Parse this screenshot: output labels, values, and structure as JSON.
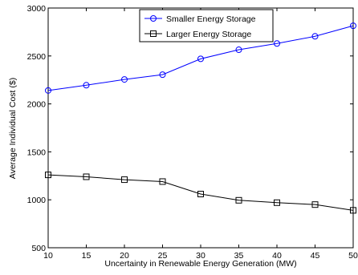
{
  "chart_data": {
    "type": "line",
    "xlabel": "Uncertainty in Renewable Energy Generation (MW)",
    "ylabel": "Average Individual Cost ($)",
    "xlim": [
      10,
      50
    ],
    "ylim": [
      500,
      3000
    ],
    "xticks": [
      10,
      15,
      20,
      25,
      30,
      35,
      40,
      45,
      50
    ],
    "yticks": [
      500,
      1000,
      1500,
      2000,
      2500,
      3000
    ],
    "grid": false,
    "legend_position": "top-center",
    "x": [
      10,
      15,
      20,
      25,
      30,
      35,
      40,
      45,
      50
    ],
    "series": [
      {
        "name": "Smaller Energy Storage",
        "values": [
          2140,
          2195,
          2255,
          2305,
          2470,
          2565,
          2630,
          2705,
          2815
        ],
        "color": "#0000ff",
        "marker": "circle"
      },
      {
        "name": "Larger Energy Storage",
        "values": [
          1260,
          1240,
          1210,
          1190,
          1060,
          995,
          970,
          950,
          890
        ],
        "color": "#000000",
        "marker": "square"
      }
    ]
  }
}
